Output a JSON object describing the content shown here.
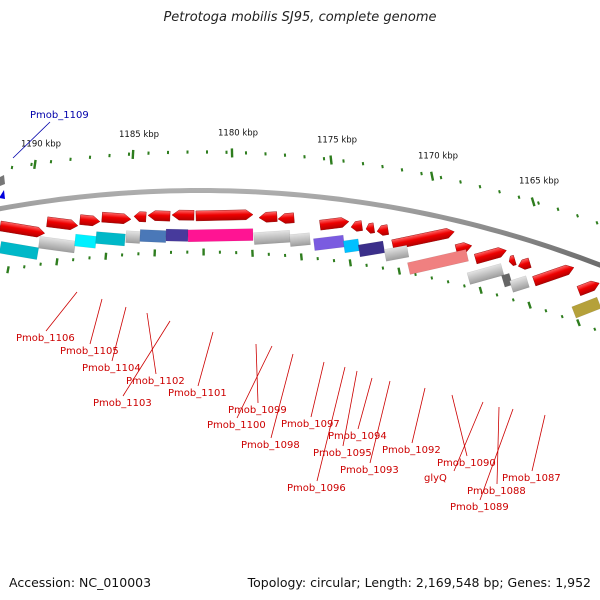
{
  "title": "Petrotoga mobilis SJ95, complete genome",
  "footer": {
    "accession": "Accession: NC_010003",
    "summary": "Topology: circular; Length: 2,169,548 bp; Genes: 1,952"
  },
  "colors": {
    "backbone": "#808080",
    "tick_major": "#2e7d1e",
    "tick_minor": "#2e7d1e",
    "scale_text": "#111111",
    "gene_label": "#cc0000",
    "highlight_label": "#0000aa"
  },
  "scale_ticks": [
    "1190 kbp",
    "1185 kbp",
    "1180 kbp",
    "1175 kbp",
    "1170 kbp",
    "1165 kbp"
  ],
  "highlight_gene": "Pmob_1109",
  "gene_labels": [
    "Pmob_1106",
    "Pmob_1105",
    "Pmob_1104",
    "Pmob_1102",
    "Pmob_1103",
    "Pmob_1101",
    "Pmob_1099",
    "Pmob_1100",
    "Pmob_1098",
    "Pmob_1097",
    "Pmob_1094",
    "Pmob_1095",
    "Pmob_1096",
    "Pmob_1093",
    "Pmob_1092",
    "Pmob_1090",
    "glyQ",
    "Pmob_1088",
    "Pmob_1087",
    "Pmob_1089"
  ],
  "legend_icons": [
    "forward-gene-arrow-icon",
    "reverse-gene-arrow-icon",
    "domain-block-icon"
  ]
}
